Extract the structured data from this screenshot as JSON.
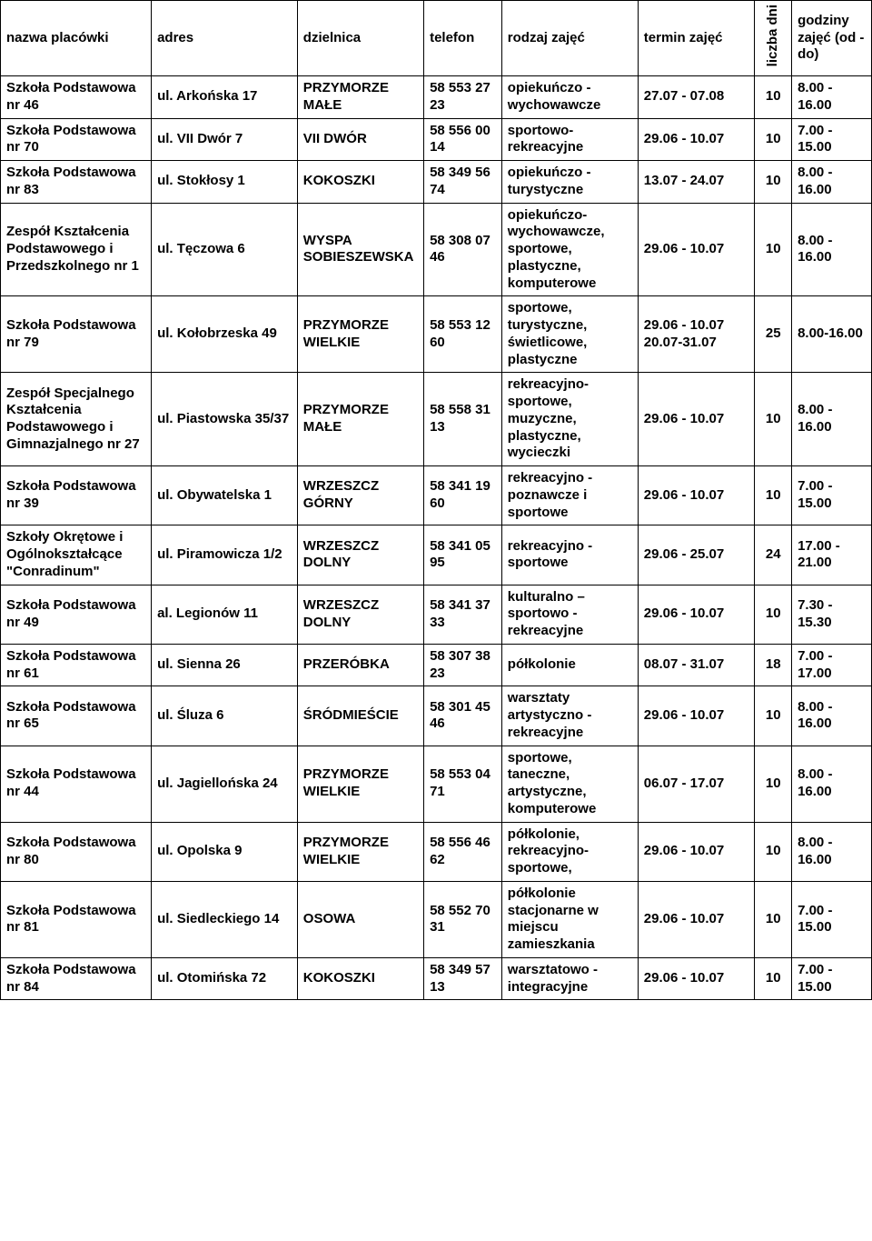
{
  "table": {
    "columns": [
      "nazwa placówki",
      "adres",
      "dzielnica",
      "telefon",
      "rodzaj zajęć",
      "termin zajęć",
      "liczba dni",
      "godziny zajęć (od - do)"
    ],
    "rows": [
      {
        "name": "Szkoła Podstawowa nr 46",
        "address": "ul. Arkońska 17",
        "district": "PRZYMORZE MAŁE",
        "phone": "58 553 27 23",
        "type": "opiekuńczo - wychowawcze",
        "term": "27.07 - 07.08",
        "days": "10",
        "hours": "8.00 - 16.00"
      },
      {
        "name": "Szkoła Podstawowa nr 70",
        "address": "ul. VII Dwór 7",
        "district": "VII DWÓR",
        "phone": "58 556 00 14",
        "type": "sportowo-rekreacyjne",
        "term": "29.06 - 10.07",
        "days": "10",
        "hours": "7.00 - 15.00"
      },
      {
        "name": "Szkoła Podstawowa nr 83",
        "address": "ul. Stokłosy 1",
        "district": "KOKOSZKI",
        "phone": "58 349 56 74",
        "type": "opiekuńczo - turystyczne",
        "term": "13.07 - 24.07",
        "days": "10",
        "hours": "8.00 - 16.00"
      },
      {
        "name": "Zespół Kształcenia Podstawowego i Przedszkolnego nr 1",
        "address": "ul. Tęczowa 6",
        "district": "WYSPA SOBIESZEWSKA",
        "phone": "58 308 07 46",
        "type": "opiekuńczo-wychowawcze, sportowe, plastyczne, komputerowe",
        "term": "29.06 - 10.07",
        "days": "10",
        "hours": "8.00 - 16.00"
      },
      {
        "name": "Szkoła Podstawowa nr 79",
        "address": "ul. Kołobrzeska 49",
        "district": "PRZYMORZE WIELKIE",
        "phone": "58 553 12 60",
        "type": "sportowe, turystyczne, świetlicowe, plastyczne",
        "term": "29.06 - 10.07 20.07-31.07",
        "days": "25",
        "hours": "8.00-16.00"
      },
      {
        "name": "Zespół Specjalnego Kształcenia Podstawowego i Gimnazjalnego nr 27",
        "address": "ul. Piastowska 35/37",
        "district": "PRZYMORZE MAŁE",
        "phone": "58 558 31 13",
        "type": "rekreacyjno-sportowe, muzyczne, plastyczne, wycieczki",
        "term": "29.06 - 10.07",
        "days": "10",
        "hours": "8.00 - 16.00"
      },
      {
        "name": "Szkoła Podstawowa nr 39",
        "address": "ul. Obywatelska 1",
        "district": "WRZESZCZ GÓRNY",
        "phone": "58 341 19 60",
        "type": "rekreacyjno - poznawcze i sportowe",
        "term": "29.06 - 10.07",
        "days": "10",
        "hours": "7.00 - 15.00"
      },
      {
        "name": "Szkoły Okrętowe i Ogólnokształcące \"Conradinum\"",
        "address": "ul. Piramowicza 1/2",
        "district": "WRZESZCZ DOLNY",
        "phone": "58 341 05 95",
        "type": "rekreacyjno - sportowe",
        "term": "29.06 - 25.07",
        "days": "24",
        "hours": "17.00 - 21.00"
      },
      {
        "name": "Szkoła Podstawowa nr 49",
        "address": "al. Legionów 11",
        "district": "WRZESZCZ DOLNY",
        "phone": "58 341 37 33",
        "type": "kulturalno – sportowo - rekreacyjne",
        "term": "29.06 - 10.07",
        "days": "10",
        "hours": "7.30 - 15.30"
      },
      {
        "name": "Szkoła Podstawowa nr 61",
        "address": "ul. Sienna 26",
        "district": "PRZERÓBKA",
        "phone": "58 307 38 23",
        "type": "półkolonie",
        "term": "08.07 - 31.07",
        "days": "18",
        "hours": "7.00 - 17.00"
      },
      {
        "name": "Szkoła Podstawowa nr 65",
        "address": "ul. Śluza 6",
        "district": "ŚRÓDMIEŚCIE",
        "phone": "58 301 45 46",
        "type": "warsztaty artystyczno - rekreacyjne",
        "term": "29.06 - 10.07",
        "days": "10",
        "hours": "8.00 - 16.00"
      },
      {
        "name": "Szkoła Podstawowa nr 44",
        "address": "ul. Jagiellońska 24",
        "district": "PRZYMORZE WIELKIE",
        "phone": "58 553 04 71",
        "type": "sportowe, taneczne, artystyczne, komputerowe",
        "term": "06.07 - 17.07",
        "days": "10",
        "hours": "8.00 - 16.00"
      },
      {
        "name": "Szkoła Podstawowa nr 80",
        "address": "ul. Opolska 9",
        "district": "PRZYMORZE WIELKIE",
        "phone": "58 556 46 62",
        "type": "półkolonie, rekreacyjno-sportowe,",
        "term": "29.06 - 10.07",
        "days": "10",
        "hours": "8.00 - 16.00"
      },
      {
        "name": "Szkoła Podstawowa nr 81",
        "address": "ul. Siedleckiego 14",
        "district": "OSOWA",
        "phone": "58 552 70 31",
        "type": "półkolonie stacjonarne w miejscu zamieszkania",
        "term": "29.06 - 10.07",
        "days": "10",
        "hours": "7.00 - 15.00"
      },
      {
        "name": "Szkoła Podstawowa nr 84",
        "address": "ul. Otomińska 72",
        "district": "KOKOSZKI",
        "phone": "58 349 57 13",
        "type": "warsztatowo - integracyjne",
        "term": "29.06 - 10.07",
        "days": "10",
        "hours": "7.00 - 15.00"
      }
    ]
  }
}
